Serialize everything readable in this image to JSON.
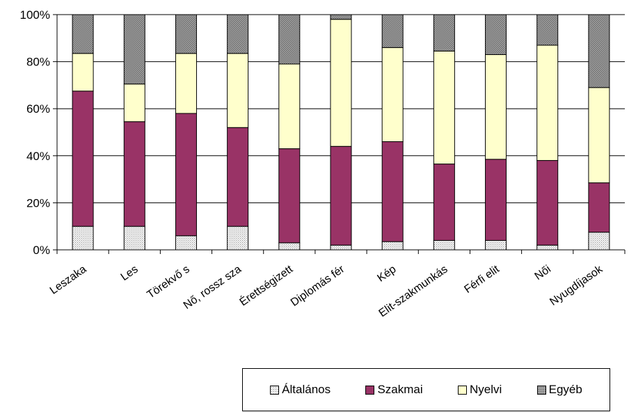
{
  "chart_data": {
    "type": "bar",
    "stacked": true,
    "percent": true,
    "categories": [
      "Leszaka",
      "Les",
      "Törekvő s",
      "Nő, rossz sza",
      "Érettségizett",
      "Diplomás fér",
      "Kép",
      "Elit-szakmunkás",
      "Férfi elit",
      "Női",
      "Nyugdíjasok"
    ],
    "series": [
      {
        "name": "Általános",
        "color": "#e0e0e0",
        "pattern": "dots",
        "values": [
          10,
          10,
          6,
          10,
          3,
          2,
          3.5,
          4,
          4,
          2,
          7.5
        ]
      },
      {
        "name": "Szakmai",
        "color": "#993366",
        "values": [
          57.5,
          44.5,
          52,
          42,
          40,
          42,
          42.5,
          32.5,
          34.5,
          36,
          21
        ]
      },
      {
        "name": "Nyelvi",
        "color": "#ffffcc",
        "values": [
          16,
          16,
          25.5,
          31.5,
          36,
          54,
          40,
          48,
          44.5,
          49,
          40.5
        ]
      },
      {
        "name": "Egyéb",
        "color": "#969696",
        "pattern": "grid",
        "values": [
          16.5,
          29.5,
          16.5,
          16.5,
          21,
          2,
          14,
          15.5,
          17,
          13,
          31
        ]
      }
    ],
    "ylim": [
      0,
      100
    ],
    "yticks": [
      "0%",
      "20%",
      "40%",
      "60%",
      "80%",
      "100%"
    ],
    "grid": true,
    "legend_position": "bottom-right"
  },
  "legend": [
    {
      "label": "Általános"
    },
    {
      "label": "Szakmai"
    },
    {
      "label": "Nyelvi"
    },
    {
      "label": "Egyéb"
    }
  ]
}
